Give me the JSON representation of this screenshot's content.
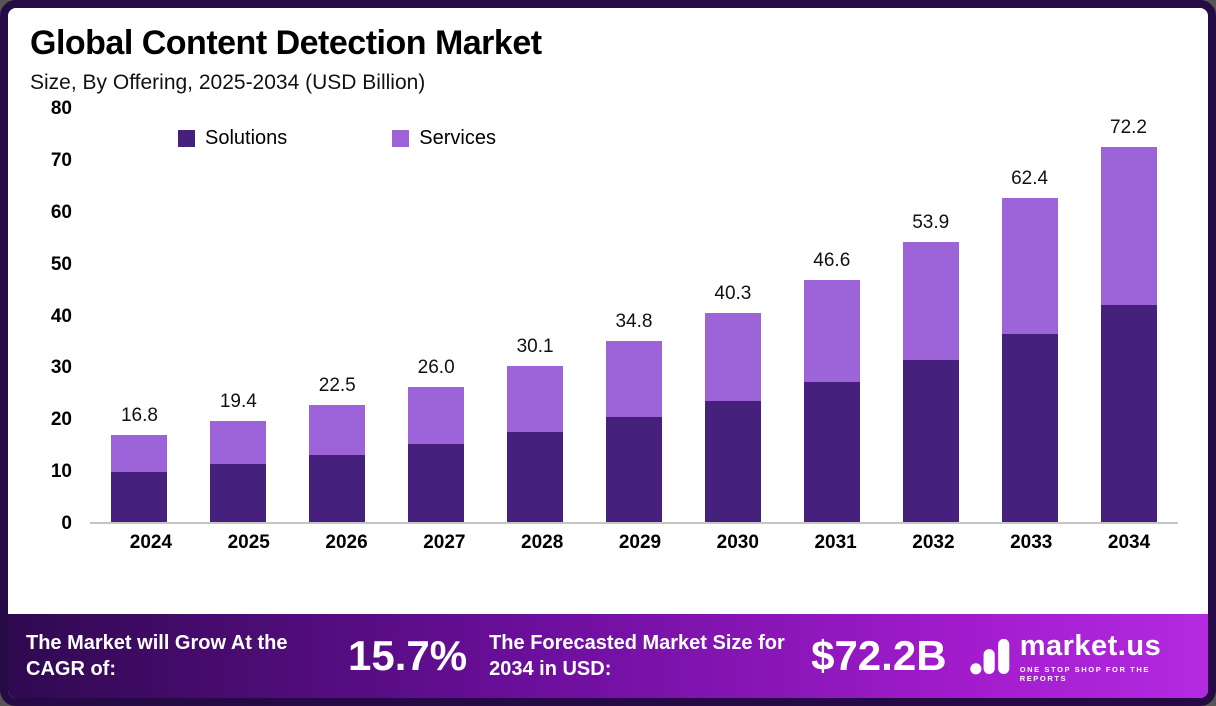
{
  "header": {
    "title": "Global Content Detection Market",
    "subtitle": "Size, By Offering, 2025-2034 (USD Billion)"
  },
  "chart_data": {
    "type": "bar",
    "stacked": true,
    "title": "Global Content Detection Market Size, By Offering, 2025-2034 (USD Billion)",
    "categories": [
      "2024",
      "2025",
      "2026",
      "2027",
      "2028",
      "2029",
      "2030",
      "2031",
      "2032",
      "2033",
      "2034"
    ],
    "series": [
      {
        "name": "Solutions",
        "color": "#46207d",
        "values": [
          9.7,
          11.2,
          13.0,
          15.1,
          17.4,
          20.2,
          23.4,
          27.0,
          31.2,
          36.2,
          41.9
        ]
      },
      {
        "name": "Services",
        "color": "#9d64d9",
        "values": [
          7.1,
          8.2,
          9.5,
          10.9,
          12.7,
          14.6,
          16.9,
          19.6,
          22.7,
          26.2,
          30.3
        ]
      }
    ],
    "totals": [
      16.8,
      19.4,
      22.5,
      26.0,
      30.1,
      34.8,
      40.3,
      46.6,
      53.9,
      62.4,
      72.2
    ],
    "ylim": [
      0,
      80
    ],
    "yticks": [
      0,
      10,
      20,
      30,
      40,
      50,
      60,
      70,
      80
    ],
    "grid": false,
    "legend_position": "top-left-inside"
  },
  "footer": {
    "cagr_label": "The Market will Grow At the CAGR of:",
    "cagr_value": "15.7%",
    "forecast_label": "The Forecasted Market Size for 2034 in USD:",
    "forecast_value": "$72.2B",
    "brand": "market.us",
    "brand_tagline": "ONE STOP SHOP FOR THE REPORTS"
  },
  "colors": {
    "frame_border": "#260a45",
    "solutions": "#46207d",
    "services": "#9d64d9",
    "footer_gradient_start": "#2f0950",
    "footer_gradient_end": "#b32ae0"
  }
}
